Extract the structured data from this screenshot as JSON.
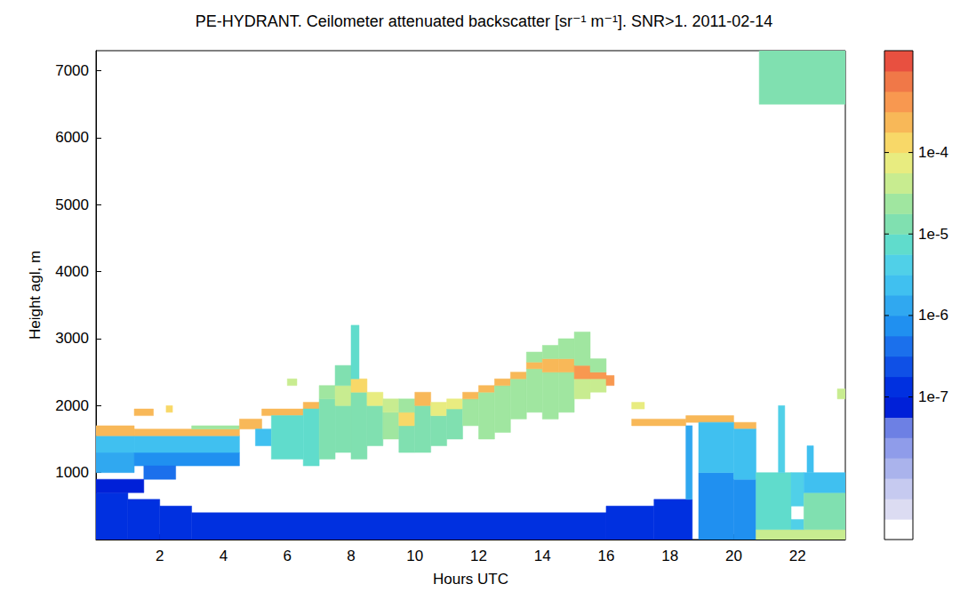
{
  "chart_data": {
    "type": "heatmap",
    "title": "PE-HYDRANT. Ceilometer attenuated backscatter [sr⁻¹ m⁻¹]. SNR>1. 2011-02-14",
    "x_label": "Hours UTC",
    "y_label": "Height agl, m",
    "xlim": [
      0,
      23.5
    ],
    "xticks": [
      2,
      4,
      6,
      8,
      10,
      12,
      14,
      16,
      18,
      20,
      22
    ],
    "ylim": [
      0,
      7300
    ],
    "yticks": [
      1000,
      2000,
      3000,
      4000,
      5000,
      6000,
      7000
    ],
    "grid": false,
    "cells": [
      [
        0,
        1,
        0,
        700,
        1.5e-07
      ],
      [
        1,
        2,
        0,
        600,
        1.5e-07
      ],
      [
        2,
        3,
        0,
        500,
        1.5e-07
      ],
      [
        3,
        16,
        0,
        400,
        1.5e-07
      ],
      [
        16,
        17.5,
        0,
        500,
        1.5e-07
      ],
      [
        17.5,
        18.7,
        0,
        600,
        1.5e-07
      ],
      [
        0,
        1.5,
        700,
        900,
        6e-08
      ],
      [
        0,
        1.2,
        1000,
        1300,
        1e-06
      ],
      [
        0,
        1.2,
        1300,
        1550,
        3e-06
      ],
      [
        1.2,
        4.5,
        1100,
        1300,
        7e-07
      ],
      [
        1.2,
        4.5,
        1300,
        1550,
        3e-06
      ],
      [
        1.5,
        2.5,
        900,
        1100,
        4e-07
      ],
      [
        0,
        1.2,
        1550,
        1700,
        0.0003
      ],
      [
        1.2,
        1.8,
        1850,
        1950,
        0.0002
      ],
      [
        2.2,
        2.4,
        1900,
        2000,
        0.00015
      ],
      [
        1.2,
        4.5,
        1550,
        1650,
        0.0003
      ],
      [
        3,
        4.5,
        1650,
        1700,
        3e-05
      ],
      [
        4.5,
        5.2,
        1650,
        1800,
        0.0002
      ],
      [
        5.2,
        6.5,
        1850,
        1950,
        0.0003
      ],
      [
        6.5,
        7,
        1950,
        2050,
        0.0002
      ],
      [
        5,
        5.5,
        1400,
        1650,
        3e-06
      ],
      [
        5.5,
        6.5,
        1200,
        1850,
        6e-06
      ],
      [
        6,
        6.3,
        2300,
        2400,
        5e-05
      ],
      [
        6.5,
        7,
        1100,
        1950,
        8e-06
      ],
      [
        7,
        7.5,
        1200,
        2100,
        1e-05
      ],
      [
        7,
        7.5,
        2100,
        2300,
        3e-05
      ],
      [
        7.5,
        8,
        1300,
        2000,
        1.2e-05
      ],
      [
        7.5,
        8,
        2000,
        2300,
        5e-05
      ],
      [
        7.5,
        8,
        2300,
        2600,
        1.5e-05
      ],
      [
        8,
        8.5,
        1200,
        2200,
        1.5e-05
      ],
      [
        8,
        8.5,
        2200,
        2400,
        0.0001
      ],
      [
        8,
        8.25,
        2400,
        3200,
        8e-06
      ],
      [
        8.5,
        9,
        1400,
        2000,
        1.5e-05
      ],
      [
        8.5,
        9,
        2000,
        2200,
        6e-05
      ],
      [
        9,
        9.5,
        1500,
        1900,
        2e-05
      ],
      [
        9,
        9.5,
        1900,
        2100,
        5e-05
      ],
      [
        9.5,
        10,
        1300,
        1700,
        1.5e-05
      ],
      [
        9.5,
        10,
        1700,
        1900,
        0.00015
      ],
      [
        9.5,
        10,
        1900,
        2100,
        2e-05
      ],
      [
        10,
        10.5,
        1300,
        2000,
        1.5e-05
      ],
      [
        10,
        10.5,
        2000,
        2200,
        0.0002
      ],
      [
        10.5,
        11,
        1400,
        1850,
        1.2e-05
      ],
      [
        10.5,
        11,
        1850,
        2050,
        6e-05
      ],
      [
        11,
        11.5,
        1500,
        1950,
        1.5e-05
      ],
      [
        11,
        11.5,
        1950,
        2100,
        8e-05
      ],
      [
        11.5,
        12,
        1700,
        2100,
        2e-05
      ],
      [
        11.5,
        12,
        2100,
        2200,
        0.0002
      ],
      [
        12,
        12.5,
        1500,
        2200,
        2e-05
      ],
      [
        12,
        12.5,
        2200,
        2300,
        0.0002
      ],
      [
        12.5,
        13,
        1600,
        2300,
        2.5e-05
      ],
      [
        12.5,
        13,
        2300,
        2400,
        0.0002
      ],
      [
        13,
        13.5,
        1800,
        2400,
        2.5e-05
      ],
      [
        13,
        13.5,
        2400,
        2500,
        0.0002
      ],
      [
        13.5,
        14,
        1900,
        2550,
        3e-05
      ],
      [
        13.5,
        14,
        2550,
        2650,
        0.00025
      ],
      [
        13.5,
        14,
        2650,
        2800,
        2e-05
      ],
      [
        14,
        14.5,
        1800,
        2500,
        3e-05
      ],
      [
        14,
        14.5,
        2500,
        2700,
        0.0002
      ],
      [
        14,
        14.5,
        2700,
        2900,
        2e-05
      ],
      [
        14.5,
        15,
        1900,
        2500,
        3e-05
      ],
      [
        14.5,
        15,
        2500,
        2700,
        0.00025
      ],
      [
        14.5,
        15,
        2700,
        3000,
        2e-05
      ],
      [
        15,
        15.5,
        2100,
        2400,
        4e-05
      ],
      [
        15,
        15.5,
        2400,
        2600,
        0.0004
      ],
      [
        15,
        15.5,
        2600,
        3100,
        2e-05
      ],
      [
        15.5,
        16,
        2200,
        2400,
        5e-05
      ],
      [
        15.5,
        16,
        2400,
        2500,
        0.0005
      ],
      [
        15.5,
        16,
        2500,
        2700,
        3e-05
      ],
      [
        16,
        16.25,
        2300,
        2450,
        0.0005
      ],
      [
        16.8,
        17.2,
        1950,
        2050,
        8e-05
      ],
      [
        16.8,
        18.5,
        1700,
        1800,
        0.0002
      ],
      [
        18.5,
        20,
        1750,
        1850,
        0.0002
      ],
      [
        20,
        20.7,
        1650,
        1750,
        0.0002
      ],
      [
        18.5,
        18.7,
        600,
        1700,
        1.5e-06
      ],
      [
        18.9,
        20,
        0,
        1000,
        6e-07
      ],
      [
        18.9,
        20,
        1000,
        1750,
        2e-06
      ],
      [
        20,
        20.7,
        0,
        900,
        8e-07
      ],
      [
        20,
        20.7,
        900,
        1650,
        3e-06
      ],
      [
        20.7,
        23.5,
        0,
        150,
        5e-05
      ],
      [
        20.7,
        21.8,
        150,
        1000,
        6e-06
      ],
      [
        21.8,
        22.2,
        150,
        300,
        4e-06
      ],
      [
        21.8,
        22.2,
        500,
        1000,
        4e-06
      ],
      [
        22.2,
        23.5,
        150,
        700,
        1e-05
      ],
      [
        22.2,
        23.5,
        700,
        1000,
        3e-06
      ],
      [
        21.4,
        21.6,
        1000,
        2000,
        5e-06
      ],
      [
        22.3,
        22.5,
        1000,
        1400,
        3e-06
      ],
      [
        23.25,
        23.5,
        2100,
        2250,
        5e-05
      ],
      [
        20.8,
        23.5,
        6500,
        7300,
        1.2e-05
      ]
    ],
    "colorbar": {
      "range": [
        1.778e-09,
        0.001778
      ],
      "log": true,
      "ticks": [
        {
          "value": 1e-07,
          "label": "1e-7"
        },
        {
          "value": 1e-06,
          "label": "1e-6"
        },
        {
          "value": 1e-05,
          "label": "1e-5"
        },
        {
          "value": 0.0001,
          "label": "1e-4"
        }
      ]
    }
  }
}
